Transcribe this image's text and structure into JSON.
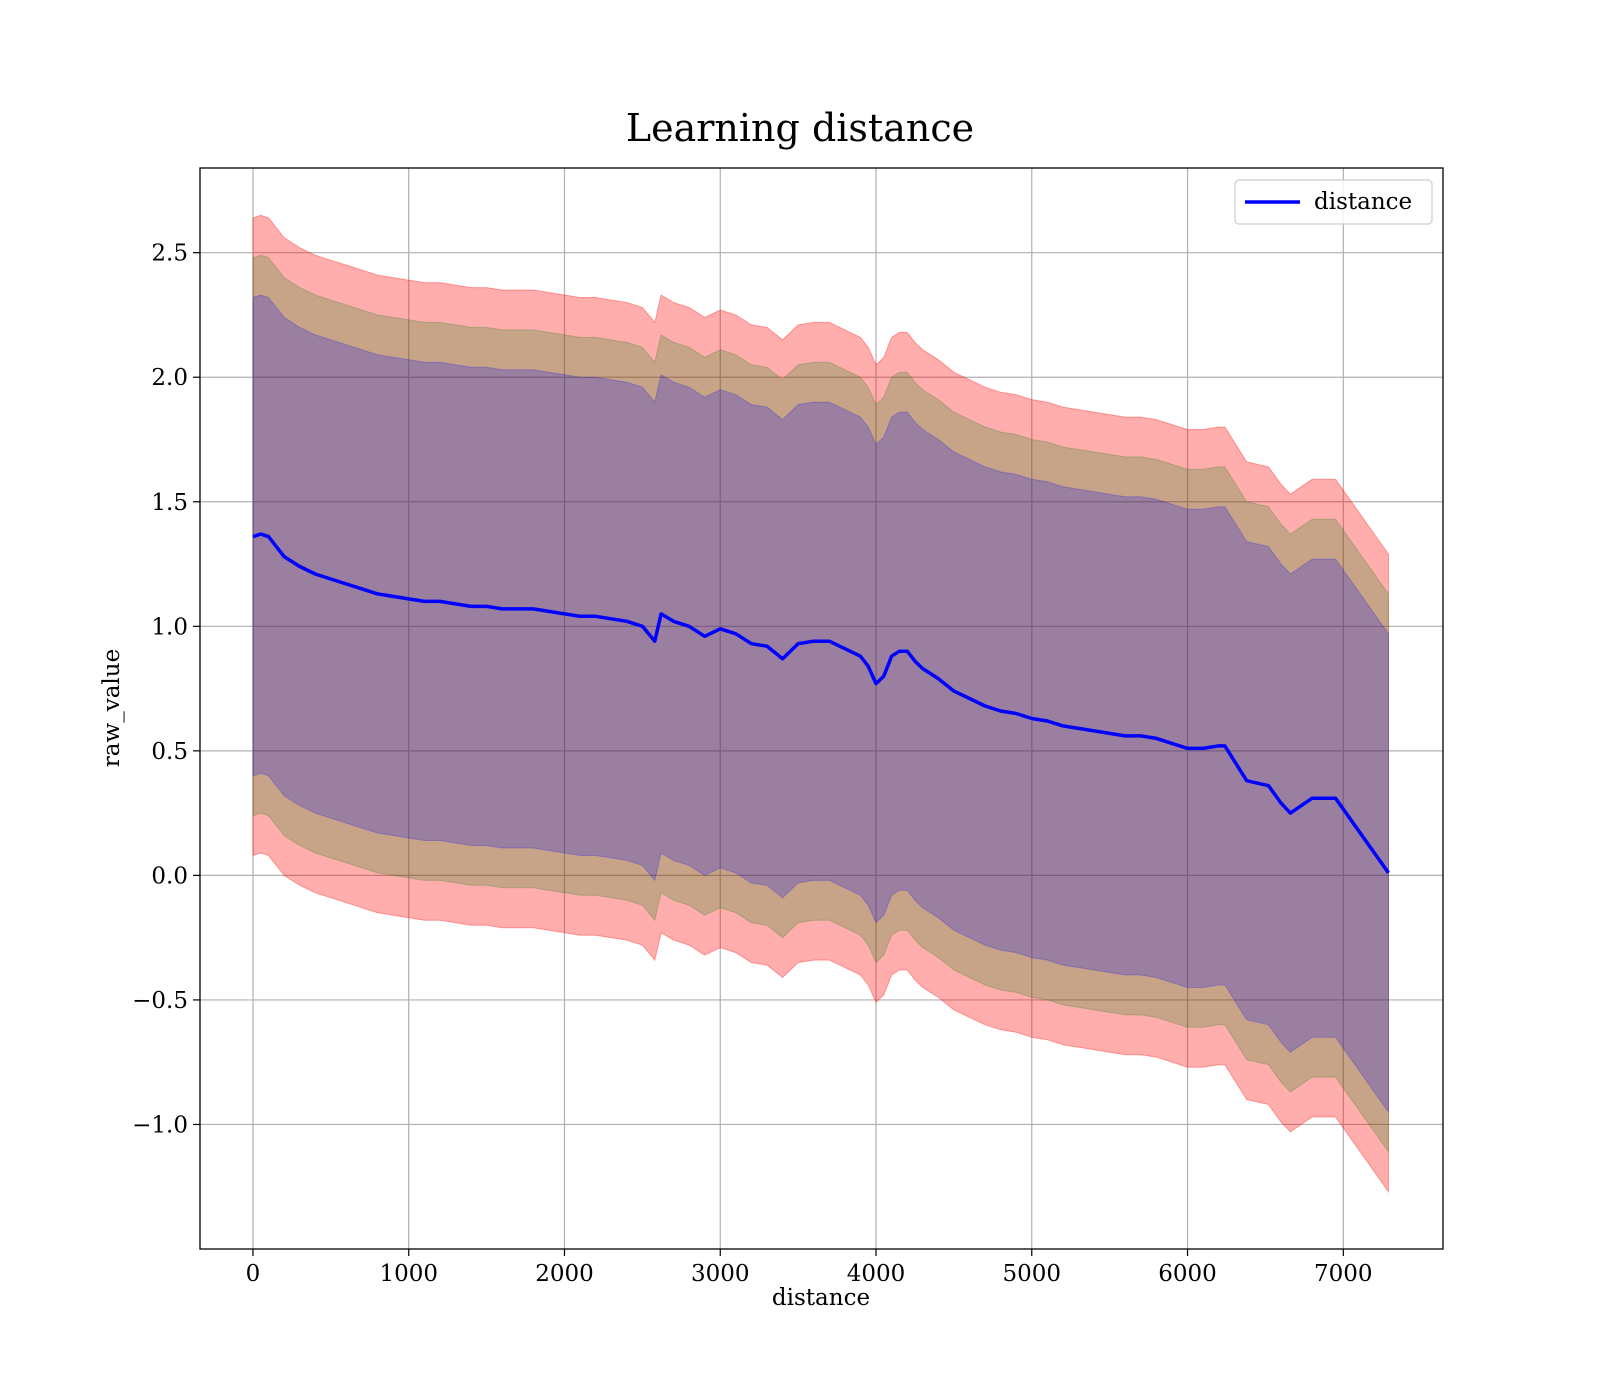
{
  "chart_data": {
    "type": "line",
    "title": "Learning distance",
    "xlabel": "distance",
    "ylabel": "raw_value",
    "xlim": [
      -340,
      7640
    ],
    "ylim": [
      -1.5,
      2.84
    ],
    "xticks": [
      0,
      1000,
      2000,
      3000,
      4000,
      5000,
      6000,
      7000
    ],
    "yticks": [
      -1.0,
      -0.5,
      0.0,
      0.5,
      1.0,
      1.5,
      2.0,
      2.5
    ],
    "xtick_labels": [
      "0",
      "1000",
      "2000",
      "3000",
      "4000",
      "5000",
      "6000",
      "7000"
    ],
    "ytick_labels": [
      "−1.0",
      "−0.5",
      "0.0",
      "0.5",
      "1.0",
      "1.5",
      "2.0",
      "2.5"
    ],
    "grid": true,
    "legend_position": "top-right",
    "series": [
      {
        "name": "distance",
        "color": "#0000ff",
        "x": [
          0,
          50,
          100,
          150,
          200,
          300,
          400,
          500,
          600,
          700,
          800,
          900,
          1000,
          1100,
          1200,
          1300,
          1400,
          1500,
          1600,
          1700,
          1800,
          1900,
          2000,
          2100,
          2200,
          2300,
          2400,
          2500,
          2580,
          2620,
          2700,
          2800,
          2900,
          3000,
          3100,
          3200,
          3300,
          3400,
          3500,
          3600,
          3700,
          3800,
          3900,
          3950,
          4000,
          4050,
          4100,
          4150,
          4200,
          4250,
          4300,
          4400,
          4500,
          4600,
          4700,
          4800,
          4900,
          5000,
          5100,
          5200,
          5300,
          5400,
          5500,
          5600,
          5700,
          5800,
          5900,
          6000,
          6100,
          6200,
          6240,
          6380,
          6520,
          6600,
          6660,
          6800,
          6950,
          7290
        ],
        "values": [
          1.36,
          1.37,
          1.36,
          1.32,
          1.28,
          1.24,
          1.21,
          1.19,
          1.17,
          1.15,
          1.13,
          1.12,
          1.11,
          1.1,
          1.1,
          1.09,
          1.08,
          1.08,
          1.07,
          1.07,
          1.07,
          1.06,
          1.05,
          1.04,
          1.04,
          1.03,
          1.02,
          1.0,
          0.94,
          1.05,
          1.02,
          1.0,
          0.96,
          0.99,
          0.97,
          0.93,
          0.92,
          0.87,
          0.93,
          0.94,
          0.94,
          0.91,
          0.88,
          0.84,
          0.77,
          0.8,
          0.88,
          0.9,
          0.9,
          0.86,
          0.83,
          0.79,
          0.74,
          0.71,
          0.68,
          0.66,
          0.65,
          0.63,
          0.62,
          0.6,
          0.59,
          0.58,
          0.57,
          0.56,
          0.56,
          0.55,
          0.53,
          0.51,
          0.51,
          0.52,
          0.52,
          0.38,
          0.36,
          0.29,
          0.25,
          0.31,
          0.31,
          0.01
        ],
        "bands": [
          {
            "color": "#ff0000",
            "opacity": 0.32,
            "upper_offset": 1.28,
            "lower_offset": 1.28
          },
          {
            "color": "#008000",
            "opacity": 0.22,
            "upper_offset": 1.12,
            "lower_offset": 1.12
          },
          {
            "color": "#0000ff",
            "opacity": 0.22,
            "upper_offset": 0.96,
            "lower_offset": 0.96
          }
        ]
      }
    ]
  },
  "legend": {
    "items": [
      {
        "label": "distance",
        "color": "#0000ff"
      }
    ]
  }
}
